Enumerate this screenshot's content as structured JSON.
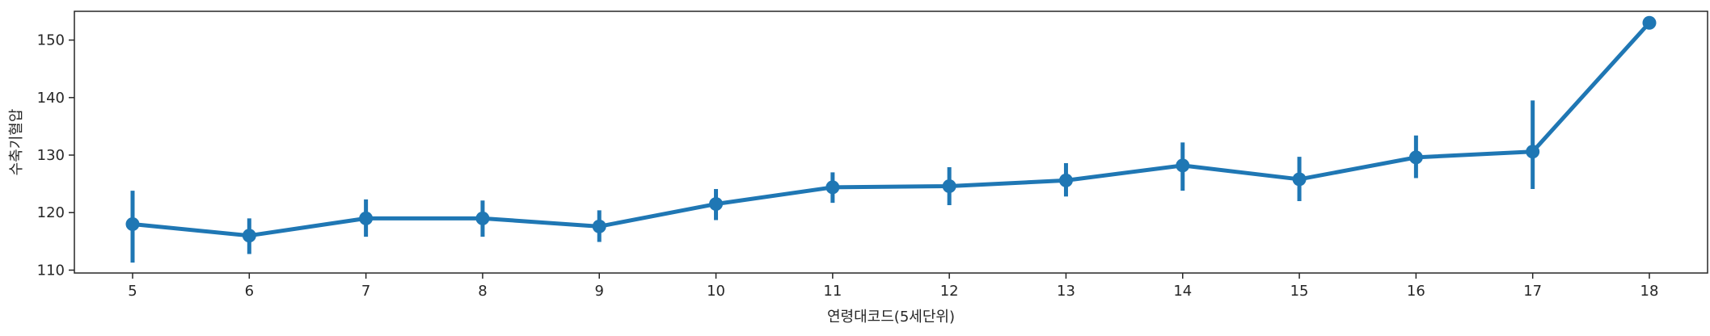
{
  "chart_data": {
    "type": "line",
    "xlabel": "연령대코드(5세단위)",
    "ylabel": "수축기혈압",
    "categories": [
      "5",
      "6",
      "7",
      "8",
      "9",
      "10",
      "11",
      "12",
      "13",
      "14",
      "15",
      "16",
      "17",
      "18"
    ],
    "ylim": [
      109.5,
      155
    ],
    "yticks": [
      110,
      120,
      130,
      140,
      150
    ],
    "grid": false,
    "color": "#1f77b4",
    "series": [
      {
        "values": [
          118.0,
          116.0,
          119.0,
          119.0,
          117.6,
          121.5,
          124.4,
          124.6,
          125.6,
          128.2,
          125.8,
          129.6,
          130.6,
          153.0
        ],
        "ci_low": [
          111.3,
          112.8,
          115.8,
          115.8,
          114.9,
          118.7,
          121.7,
          121.3,
          122.8,
          123.8,
          122.0,
          126.0,
          124.1,
          153.0
        ],
        "ci_high": [
          123.8,
          119.0,
          122.3,
          122.1,
          120.4,
          124.1,
          127.0,
          127.9,
          128.6,
          132.2,
          129.7,
          133.4,
          139.5,
          153.0
        ]
      }
    ]
  }
}
